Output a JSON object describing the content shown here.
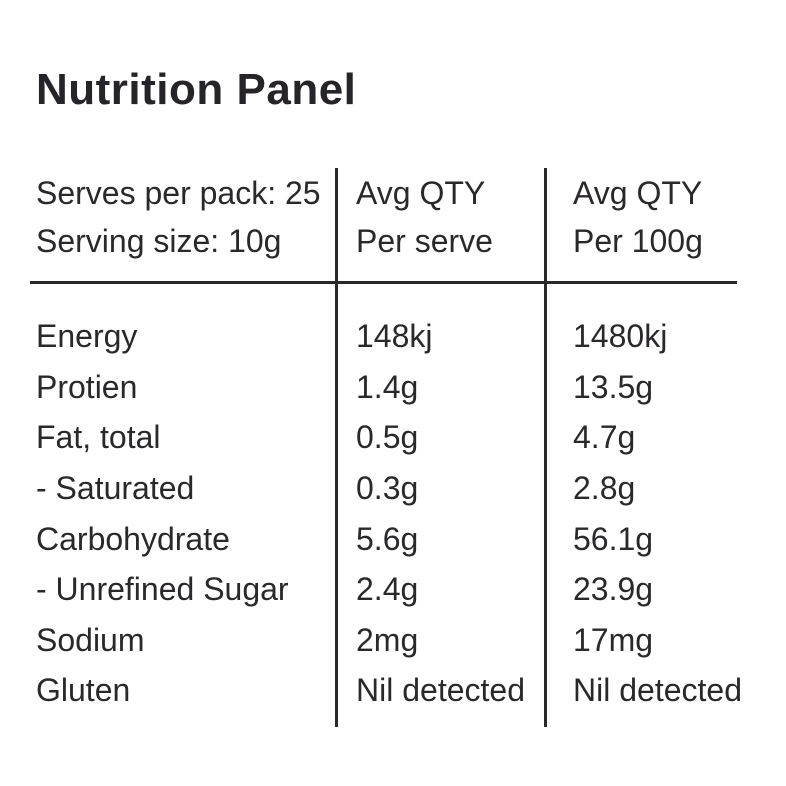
{
  "title": "Nutrition Panel",
  "colors": {
    "background": "#ffffff",
    "text": "#2a282b",
    "rule_lines": "#2a282b"
  },
  "table": {
    "header": {
      "serves_per_pack": "Serves per pack: 25",
      "serving_size": "Serving size: 10g",
      "per_serve_line1": "Avg QTY",
      "per_serve_line2": "Per serve",
      "per_100g_line1": "Avg QTY",
      "per_100g_line2": "Per 100g"
    },
    "rows": [
      {
        "label": "Energy",
        "per_serve": "148kj",
        "per_100g": "1480kj"
      },
      {
        "label": "Protien",
        "per_serve": "1.4g",
        "per_100g": "13.5g"
      },
      {
        "label": "Fat, total",
        "per_serve": "0.5g",
        "per_100g": "4.7g"
      },
      {
        "label": "- Saturated",
        "per_serve": "0.3g",
        "per_100g": "2.8g"
      },
      {
        "label": "Carbohydrate",
        "per_serve": "5.6g",
        "per_100g": "56.1g"
      },
      {
        "label": "- Unrefined Sugar",
        "per_serve": "2.4g",
        "per_100g": "23.9g"
      },
      {
        "label": "Sodium",
        "per_serve": "2mg",
        "per_100g": "17mg"
      },
      {
        "label": "Gluten",
        "per_serve": "Nil detected",
        "per_100g": "Nil detected"
      }
    ]
  }
}
